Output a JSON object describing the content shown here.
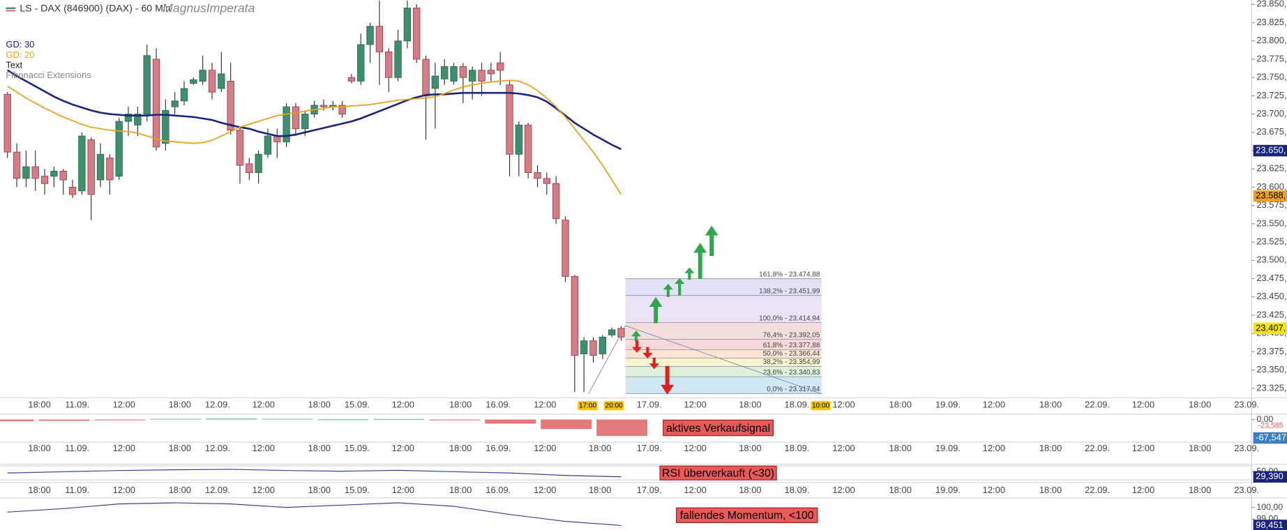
{
  "header": {
    "title": "LS - DAX (846900) (DAX) - 60 Min",
    "author": "MagnusImperata"
  },
  "chart_data": [
    {
      "type": "candlestick",
      "open": [
        23727,
        23648,
        23612,
        23628,
        23615,
        23615,
        23622,
        23600,
        23595,
        23665,
        23610,
        23640,
        23615,
        23690,
        23685,
        23700,
        23775,
        23660,
        23710,
        23718,
        23742,
        23745,
        23760,
        23735,
        23745,
        23678,
        23632,
        23620,
        23645,
        23670,
        23662,
        23710,
        23680,
        23700,
        23712,
        23710,
        23712,
        23750,
        23745,
        23795,
        23820,
        23785,
        23750,
        23800,
        23845,
        23775,
        23735,
        23748,
        23745,
        23765,
        23745,
        23760,
        23760,
        23770,
        23740,
        23645,
        23685,
        23620,
        23612,
        23605,
        23555,
        23478,
        23372,
        23390,
        23372,
        23398,
        23407
      ],
      "high": [
        23730,
        23660,
        23650,
        23650,
        23625,
        23628,
        23625,
        23610,
        23675,
        23668,
        23660,
        23645,
        23695,
        23710,
        23710,
        23795,
        23790,
        23720,
        23730,
        23745,
        23750,
        23780,
        23770,
        23785,
        23770,
        23682,
        23640,
        23650,
        23680,
        23680,
        23715,
        23715,
        23705,
        23718,
        23720,
        23718,
        23718,
        23755,
        23810,
        23825,
        23855,
        23790,
        23815,
        23855,
        23850,
        23780,
        23770,
        23775,
        23770,
        23770,
        23765,
        23770,
        23770,
        23785,
        23745,
        23690,
        23688,
        23630,
        23620,
        23615,
        23560,
        23480,
        23395,
        23395,
        23398,
        23408,
        23410
      ],
      "low": [
        23640,
        23600,
        23600,
        23595,
        23590,
        23600,
        23590,
        23585,
        23590,
        23555,
        23600,
        23590,
        23610,
        23670,
        23670,
        23690,
        23650,
        23650,
        23700,
        23712,
        23740,
        23740,
        23720,
        23730,
        23672,
        23605,
        23610,
        23605,
        23640,
        23640,
        23655,
        23670,
        23670,
        23695,
        23705,
        23705,
        23695,
        23742,
        23740,
        23770,
        23740,
        23730,
        23745,
        23790,
        23770,
        23665,
        23680,
        23740,
        23740,
        23715,
        23720,
        23725,
        23745,
        23740,
        23615,
        23615,
        23612,
        23600,
        23590,
        23550,
        23470,
        23320,
        23320,
        23360,
        23365,
        23395,
        23390
      ],
      "close": [
        23648,
        23612,
        23628,
        23612,
        23605,
        23622,
        23610,
        23590,
        23670,
        23590,
        23645,
        23610,
        23690,
        23700,
        23700,
        23780,
        23655,
        23705,
        23718,
        23735,
        23747,
        23760,
        23730,
        23755,
        23678,
        23630,
        23620,
        23645,
        23670,
        23662,
        23710,
        23680,
        23700,
        23712,
        23710,
        23712,
        23700,
        23745,
        23795,
        23820,
        23785,
        23750,
        23800,
        23845,
        23775,
        23725,
        23752,
        23765,
        23765,
        23750,
        23760,
        23745,
        23755,
        23760,
        23645,
        23685,
        23620,
        23612,
        23605,
        23557,
        23478,
        23370,
        23390,
        23370,
        23395,
        23405,
        23395
      ],
      "up_color": "#3f8f6e",
      "down_color": "#d57d86",
      "series": [
        {
          "name": "GD: 30",
          "color": "#1a237e",
          "values": [
            23760,
            23752,
            23745,
            23738,
            23731,
            23724,
            23718,
            23713,
            23709,
            23705,
            23702,
            23700,
            23699,
            23698,
            23698,
            23698,
            23699,
            23699,
            23698,
            23697,
            23696,
            23694,
            23692,
            23688,
            23685,
            23682,
            23680,
            23676,
            23673,
            23670,
            23670,
            23672,
            23675,
            23678,
            23681,
            23684,
            23687,
            23690,
            23694,
            23699,
            23704,
            23709,
            23714,
            23719,
            23723,
            23726,
            23727,
            23727,
            23728,
            23729,
            23729,
            23729,
            23729,
            23729,
            23729,
            23728,
            23726,
            23723,
            23717,
            23708,
            23698,
            23688,
            23680,
            23672,
            23665,
            23658,
            23652
          ]
        },
        {
          "name": "GD: 20",
          "color": "#e8a317",
          "values": [
            23738,
            23730,
            23722,
            23715,
            23708,
            23702,
            23696,
            23691,
            23686,
            23682,
            23680,
            23678,
            23677,
            23676,
            23674,
            23670,
            23666,
            23663,
            23662,
            23661,
            23660,
            23661,
            23664,
            23670,
            23676,
            23682,
            23686,
            23690,
            23694,
            23698,
            23700,
            23702,
            23704,
            23706,
            23708,
            23710,
            23710,
            23711,
            23712,
            23713,
            23715,
            23717,
            23719,
            23720,
            23721,
            23722,
            23724,
            23728,
            23733,
            23737,
            23740,
            23742,
            23744,
            23745,
            23746,
            23745,
            23740,
            23732,
            23722,
            23710,
            23696,
            23680,
            23664,
            23648,
            23630,
            23610,
            23590
          ]
        }
      ],
      "legend": [
        "Text",
        "Fibonacci Extensions"
      ],
      "ylim": [
        23313,
        23856
      ],
      "yticks": [
        {
          "value": 23850,
          "label": "23.850,"
        },
        {
          "value": 23825,
          "label": "23.825,"
        },
        {
          "value": 23800,
          "label": "23.800,"
        },
        {
          "value": 23775,
          "label": "23.775,"
        },
        {
          "value": 23750,
          "label": "23.750,"
        },
        {
          "value": 23725,
          "label": "23.725,"
        },
        {
          "value": 23700,
          "label": "23.700,"
        },
        {
          "value": 23675,
          "label": "23.675,"
        },
        {
          "value": 23650,
          "label": "23.650,"
        },
        {
          "value": 23625,
          "label": "23.625,"
        },
        {
          "value": 23600,
          "label": "23.600,"
        },
        {
          "value": 23575,
          "label": "23.575,"
        },
        {
          "value": 23550,
          "label": "23.550,"
        },
        {
          "value": 23525,
          "label": "23.525,"
        },
        {
          "value": 23500,
          "label": "23.500,"
        },
        {
          "value": 23475,
          "label": "23.475,"
        },
        {
          "value": 23450,
          "label": "23.450,"
        },
        {
          "value": 23425,
          "label": "23.425,"
        },
        {
          "value": 23400,
          "label": "23.400,"
        },
        {
          "value": 23375,
          "label": "23.375,"
        },
        {
          "value": 23350,
          "label": "23.350,"
        },
        {
          "value": 23325,
          "label": "23.325,"
        }
      ],
      "price_markers": [
        {
          "value": 23650,
          "label": "23.650,",
          "color": "#1a237e",
          "text_color": "#ffffff"
        },
        {
          "value": 23588,
          "label": "23.588,",
          "color": "#f0a020",
          "text_color": "#000000"
        },
        {
          "value": 23407,
          "label": "23.407,",
          "color": "#f5e600",
          "text_color": "#000000"
        }
      ],
      "x_labels": [
        "18:00",
        "11.09.",
        "12:00",
        "18:00",
        "12.09.",
        "12:00",
        "18:00",
        "15.09.",
        "12:00",
        "18:00",
        "16.09.",
        "12:00",
        {
          "label": "17:00",
          "highlight": true
        },
        {
          "label": "20:00",
          "highlight": true
        },
        "17.09.",
        "12:00",
        "18:00",
        "18.09.",
        {
          "label": "10:00",
          "highlight": true
        },
        "12:00",
        "18:00",
        "19.09.",
        "12:00",
        "18:00",
        "22.09.",
        "12:00",
        "18:00",
        "23.09."
      ],
      "fibonacci": {
        "levels": [
          {
            "label": "161,8% - 23.474,88",
            "value": 23474.88
          },
          {
            "label": "138,2% - 23.451,99",
            "value": 23451.99
          },
          {
            "label": "100,0% - 23.414,94",
            "value": 23414.94
          },
          {
            "label": "76,4% - 23.392,05",
            "value": 23392.05
          },
          {
            "label": "61,8% - 23.377,88",
            "value": 23377.88
          },
          {
            "label": "50,0% - 23.366,44",
            "value": 23366.44
          },
          {
            "label": "38,2% - 23.354,99",
            "value": 23354.99
          },
          {
            "label": "23,6% - 23.340,83",
            "value": 23340.83
          },
          {
            "label": "0,0% - 23.317,84",
            "value": 23317.84
          }
        ],
        "colors": [
          "#e2e2f7",
          "#ece2f5",
          "#f3dede",
          "#f7d8d8",
          "#fae5d2",
          "#f8f4cf",
          "#ddf0d9",
          "#cfe8f3"
        ]
      }
    },
    {
      "type": "bar",
      "x": [
        0,
        6,
        12,
        18,
        24,
        30,
        36,
        42,
        48,
        54,
        60,
        66
      ],
      "values": [
        -6,
        -5,
        -2,
        3,
        4,
        3,
        1,
        2,
        -3,
        -15,
        -35,
        -60
      ],
      "up_color": "#5fbf9f",
      "down_color": "#e06060",
      "ylim": [
        -80,
        10
      ],
      "yticks": [
        {
          "value": 0,
          "label": "0.00"
        }
      ],
      "side_labels": [
        {
          "value": -23.585,
          "label": "-23,585",
          "color": "#e06060"
        }
      ],
      "markers": [
        {
          "value": -67.547,
          "label": "-67,547",
          "color": "#3a7fc1",
          "text_color": "#ffffff"
        }
      ],
      "annotation": "aktives Verkaufsignal",
      "x_labels": [
        "18:00",
        "11.09.",
        "12:00",
        "18:00",
        "12.09.",
        "12:00",
        "18:00",
        "15.09.",
        "12:00",
        "18:00",
        "16.09.",
        "12:00",
        "18:00",
        "17.09.",
        "12:00",
        "18:00",
        "18.09.",
        "12:00",
        "18:00",
        "19.09.",
        "12:00",
        "18:00",
        "22.09.",
        "12:00",
        "18:00",
        "23.09."
      ]
    },
    {
      "type": "line",
      "x": [
        0,
        6,
        12,
        18,
        24,
        30,
        36,
        42,
        48,
        54,
        60,
        66
      ],
      "values": [
        45,
        50,
        55,
        58,
        60,
        55,
        52,
        56,
        50,
        45,
        35,
        29.39
      ],
      "color": "#3a3f9a",
      "ylim": [
        20,
        70
      ],
      "yticks": [
        {
          "value": 50,
          "label": "50,00"
        }
      ],
      "markers": [
        {
          "value": 29.39,
          "label": "29,390",
          "color": "#1a237e",
          "text_color": "#ffffff"
        }
      ],
      "annotation": "RSI überverkauft (<30)",
      "x_labels": [
        "18:00",
        "11.09.",
        "12:00",
        "18:00",
        "12.09.",
        "12:00",
        "18:00",
        "15.09.",
        "12:00",
        "18:00",
        "16.09.",
        "12:00",
        "18:00",
        "17.09.",
        "12:00",
        "18:00",
        "18.09.",
        "12:00",
        "18:00",
        "19.09.",
        "12:00",
        "18:00",
        "22.09.",
        "12:00",
        "18:00",
        "23.09."
      ]
    },
    {
      "type": "line",
      "x": [
        0,
        6,
        12,
        18,
        24,
        30,
        36,
        42,
        48,
        54,
        60,
        66
      ],
      "values": [
        99.6,
        99.9,
        100.3,
        100.4,
        100.3,
        100.0,
        100.2,
        100.4,
        100.1,
        99.4,
        98.8,
        98.451
      ],
      "color": "#3a3f9a",
      "ylim": [
        98.2,
        100.6
      ],
      "yticks": [
        {
          "value": 100,
          "label": "100,00"
        },
        {
          "value": 99,
          "label": "99,00"
        }
      ],
      "markers": [
        {
          "value": 98.451,
          "label": "98,451",
          "color": "#1a237e",
          "text_color": "#ffffff"
        }
      ],
      "annotation": "fallendes Momentum, <100"
    }
  ]
}
